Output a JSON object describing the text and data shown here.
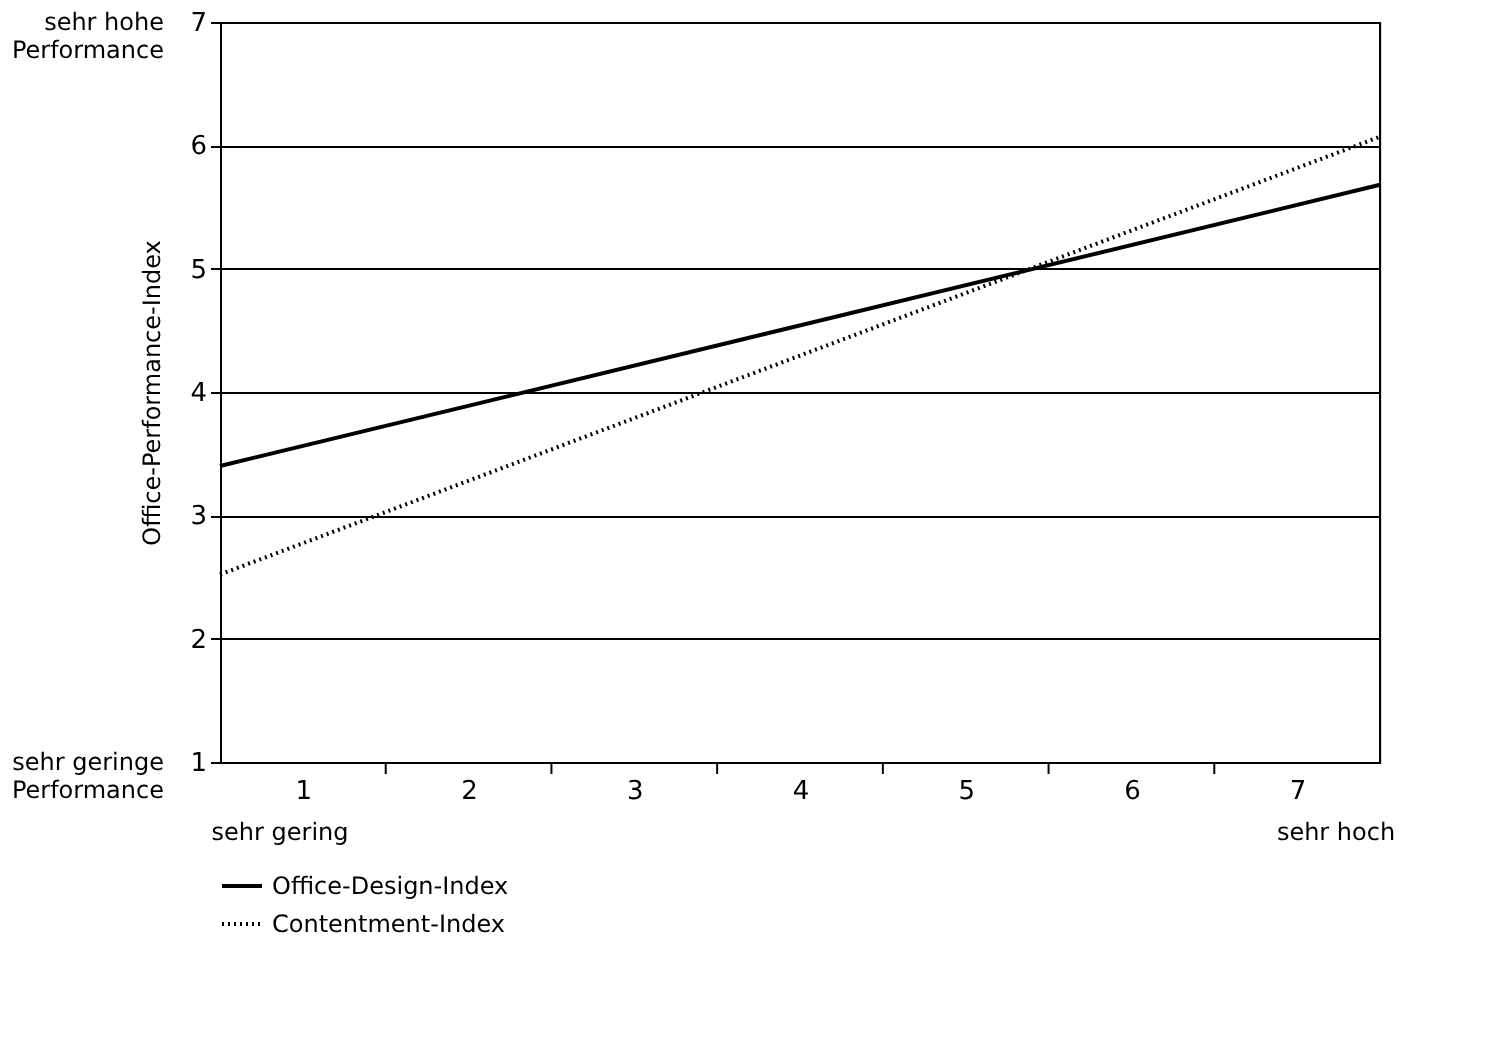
{
  "chart_data": {
    "type": "line",
    "ylabel": "Office-Performance-Index",
    "x": [
      0.5,
      7.5
    ],
    "series": [
      {
        "name": "Office-Design-Index",
        "color": "#000000",
        "line_style": "solid",
        "values": [
          3.4,
          5.68
        ]
      },
      {
        "name": "Contentment-Index",
        "color": "#000000",
        "line_style": "dotted",
        "values": [
          2.52,
          6.07
        ]
      }
    ],
    "xlim": [
      0.5,
      7.5
    ],
    "xticks": [
      1,
      2,
      3,
      4,
      5,
      6,
      7,
      {
        "value": 1.5,
        "label": null
      },
      {
        "value": 2.5,
        "label": null
      },
      {
        "value": 3.5,
        "label": null
      },
      {
        "value": 4.5,
        "label": null
      },
      {
        "value": 5.5,
        "label": null
      },
      {
        "value": 6.5,
        "label": null
      }
    ],
    "ylim": [
      1,
      7
    ],
    "yticks": [
      1,
      2,
      3,
      4,
      5,
      6,
      7
    ],
    "grid": "y",
    "legend": "bottom",
    "marker": "none",
    "annotations": [
      "sehr hohe\nPerformance",
      "sehr geringe\nPerformance",
      "sehr gering",
      "sehr hoch"
    ]
  }
}
